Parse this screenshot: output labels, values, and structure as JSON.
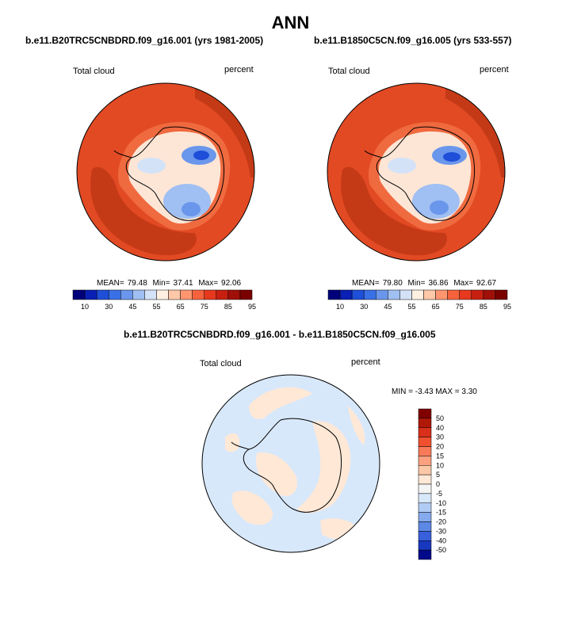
{
  "title": "ANN",
  "panels": [
    {
      "case": "b.e11.B20TRC5CNBDRD.f09_g16.001 (yrs 1981-2005)",
      "variable": "Total cloud",
      "units": "percent",
      "stats": {
        "mean_label": "MEAN=",
        "mean": "79.48",
        "min_label": "Min=",
        "min": "37.41",
        "max_label": "Max=",
        "max": "92.06"
      }
    },
    {
      "case": "b.e11.B1850C5CN.f09_g16.005 (yrs 533-557)",
      "variable": "Total cloud",
      "units": "percent",
      "stats": {
        "mean_label": "MEAN=",
        "mean": "79.80",
        "min_label": "Min=",
        "min": "36.86",
        "max_label": "Max=",
        "max": "92.67"
      }
    }
  ],
  "colorbar_horizontal": {
    "labels": [
      "10",
      "30",
      "45",
      "55",
      "65",
      "75",
      "85",
      "95"
    ],
    "colors": [
      "#00007a",
      "#0a1fb4",
      "#1f4fd8",
      "#3a70e6",
      "#6a96ec",
      "#a0bff2",
      "#d4e2f8",
      "#fff0e2",
      "#ffc8a8",
      "#ff9670",
      "#f5623c",
      "#e6391e",
      "#c82010",
      "#a01008",
      "#7a0000"
    ]
  },
  "difference": {
    "title": "b.e11.B20TRC5CNBDRD.f09_g16.001 - b.e11.B1850C5CN.f09_g16.005",
    "variable": "Total cloud",
    "units": "percent",
    "min_label": "MIN =",
    "min": "-3.43",
    "max_label": "MAX =",
    "max": "3.30",
    "colorbar_labels": [
      "50",
      "40",
      "30",
      "20",
      "15",
      "10",
      "5",
      "0",
      "-5",
      "-10",
      "-15",
      "-20",
      "-30",
      "-40",
      "-50"
    ],
    "colorbar_colors": [
      "#800000",
      "#b01808",
      "#d8301a",
      "#f05030",
      "#f87a58",
      "#fca080",
      "#fdc8a8",
      "#ffe8d6",
      "#f4f4f4",
      "#d8e8fb",
      "#b0ccf4",
      "#86aaee",
      "#5c88e6",
      "#3860dc",
      "#1838c0",
      "#000a8a"
    ]
  },
  "colors": {
    "map_high": "#e24a24",
    "map_very_high": "#c53a16",
    "map_edge": "#ea5a2c",
    "diff_background": "#d8e8fb",
    "diff_positive": "#ffe8d6"
  }
}
